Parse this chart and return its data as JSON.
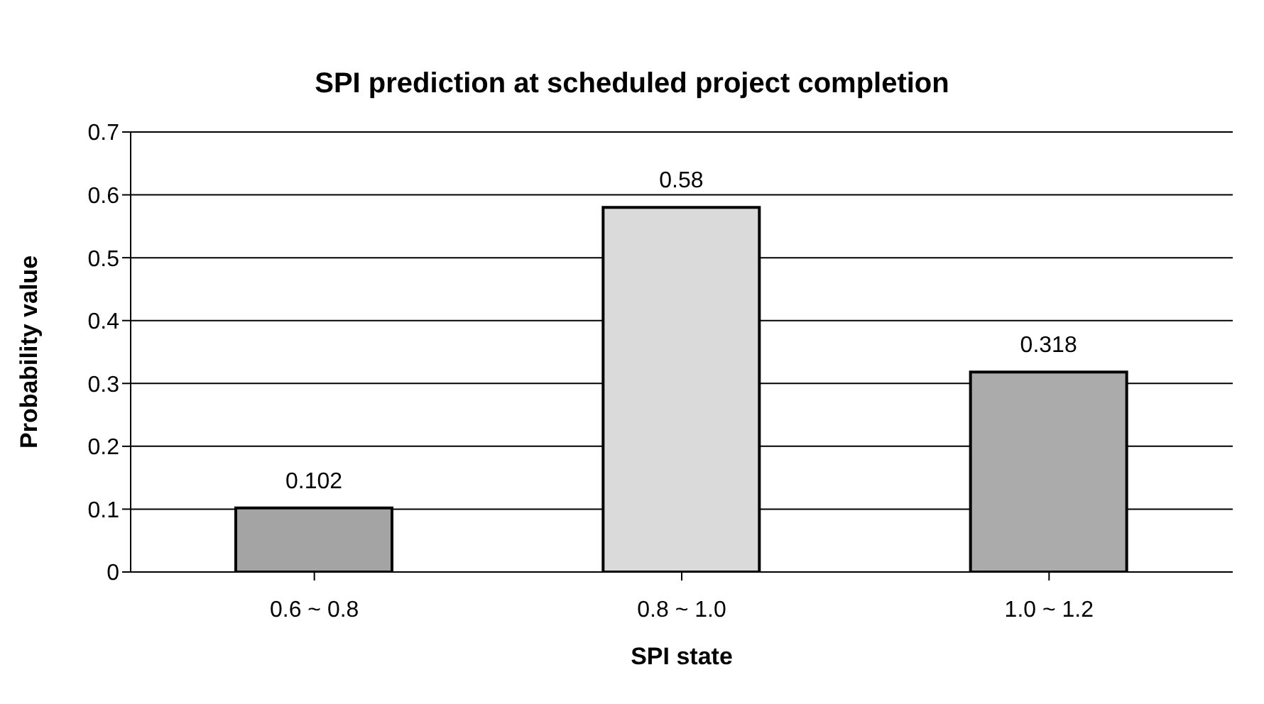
{
  "chart_data": {
    "type": "bar",
    "title": "SPI prediction at scheduled project completion",
    "xlabel": "SPI state",
    "ylabel": "Probability value",
    "categories": [
      "0.6 ~ 0.8",
      "0.8 ~ 1.0",
      "1.0 ~ 1.2"
    ],
    "values": [
      0.102,
      0.58,
      0.318
    ],
    "colors": [
      "#a4a4a4",
      "#dadada",
      "#ababab"
    ],
    "ylim": [
      0,
      0.7
    ],
    "yticks": [
      0,
      0.1,
      0.2,
      0.3,
      0.4,
      0.5,
      0.6,
      0.7
    ],
    "grid": "y",
    "data_labels": true,
    "legend": false
  }
}
